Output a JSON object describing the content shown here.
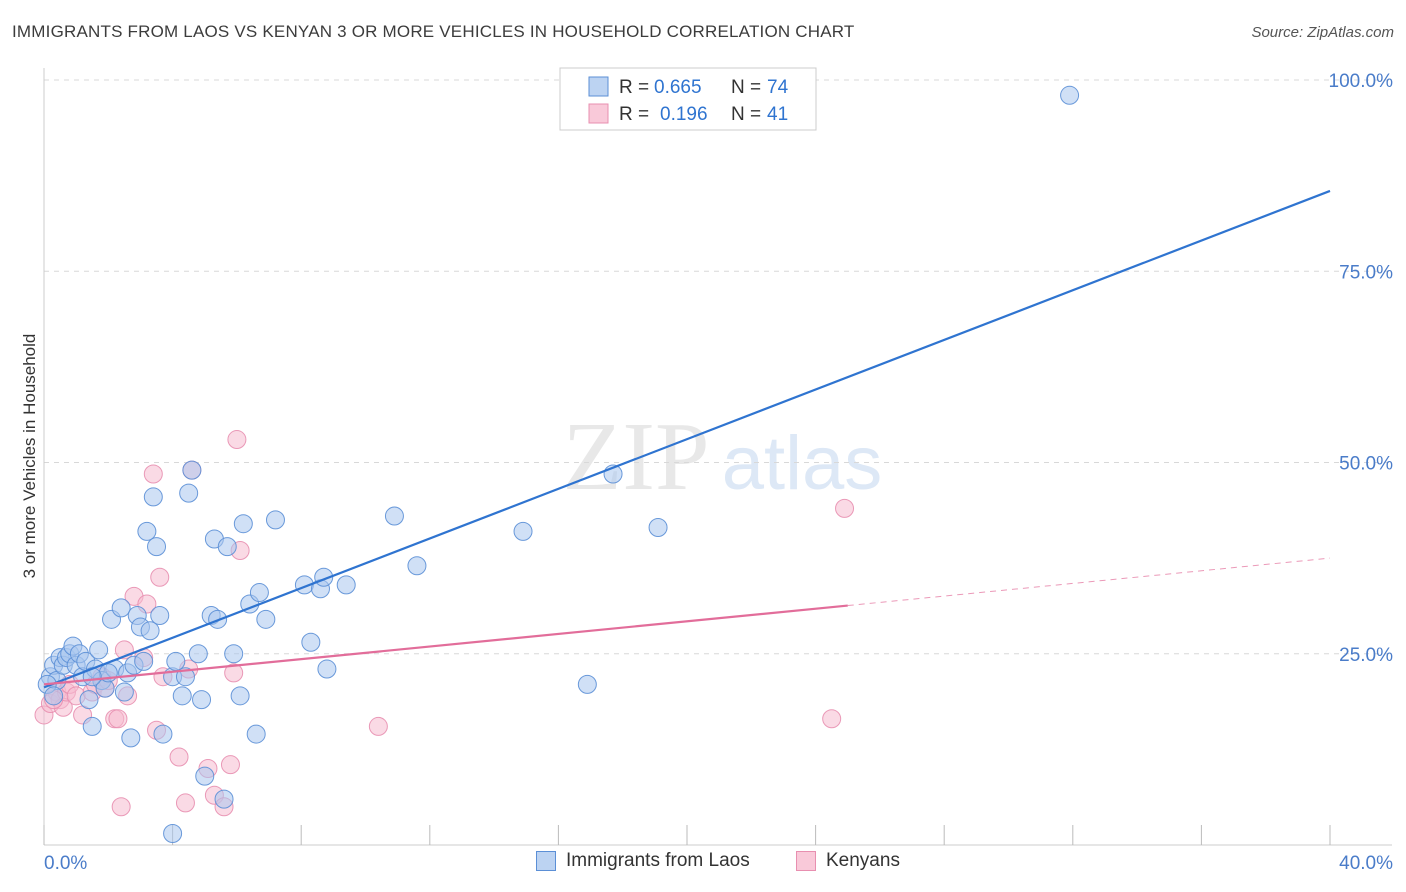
{
  "header": {
    "title": "IMMIGRANTS FROM LAOS VS KENYAN 3 OR MORE VEHICLES IN HOUSEHOLD CORRELATION CHART",
    "source": "Source: ZipAtlas.com"
  },
  "watermark": {
    "zip": "ZIP",
    "atlas": "atlas"
  },
  "colors": {
    "blue": "#2f74d0",
    "blue_fill": "#a9c6ee",
    "blue_stroke": "#5b8fd6",
    "pink": "#e26d9a",
    "pink_fill": "#f5bbd0",
    "pink_stroke": "#e88fb0",
    "tick_label": "#4a7cc9",
    "grid": "#d8d8d8"
  },
  "chart_data": {
    "type": "scatter",
    "title": "IMMIGRANTS FROM LAOS VS KENYAN 3 OR MORE VEHICLES IN HOUSEHOLD CORRELATION CHART",
    "xlabel": "",
    "ylabel": "3 or more Vehicles in Household",
    "xlim": [
      0,
      40
    ],
    "ylim": [
      0,
      100
    ],
    "x_tick_labels": [
      "0.0%",
      "40.0%"
    ],
    "y_tick_labels": [
      "25.0%",
      "50.0%",
      "75.0%",
      "100.0%"
    ],
    "y_ticks": [
      25,
      50,
      75,
      100
    ],
    "legend_stats": [
      {
        "r_label": "R =",
        "r_value": "0.665",
        "n_label": "N =",
        "n_value": "74"
      },
      {
        "r_label": "R =",
        "r_value": "0.196",
        "n_label": "N =",
        "n_value": "41"
      }
    ],
    "series": [
      {
        "name": "Immigrants from Laos",
        "color": "#2f74d0",
        "trend": {
          "x0": 0,
          "y0": 20.6,
          "x1": 40,
          "y1": 85.5
        },
        "points": [
          [
            0.2,
            22.0
          ],
          [
            0.3,
            23.5
          ],
          [
            0.4,
            21.5
          ],
          [
            0.5,
            24.5
          ],
          [
            0.6,
            23.5
          ],
          [
            0.7,
            24.5
          ],
          [
            0.8,
            25.0
          ],
          [
            0.9,
            26.0
          ],
          [
            1.0,
            23.5
          ],
          [
            1.1,
            25.0
          ],
          [
            1.2,
            22.0
          ],
          [
            1.3,
            24.0
          ],
          [
            1.4,
            19.0
          ],
          [
            1.5,
            15.5
          ],
          [
            1.6,
            23.0
          ],
          [
            1.7,
            25.5
          ],
          [
            1.8,
            21.5
          ],
          [
            1.9,
            20.5
          ],
          [
            2.1,
            29.5
          ],
          [
            2.2,
            23.0
          ],
          [
            2.4,
            31.0
          ],
          [
            2.5,
            20.0
          ],
          [
            2.6,
            22.5
          ],
          [
            2.7,
            14.0
          ],
          [
            2.8,
            23.5
          ],
          [
            2.9,
            30.0
          ],
          [
            3.0,
            28.5
          ],
          [
            3.1,
            24.0
          ],
          [
            3.2,
            41.0
          ],
          [
            3.3,
            28.0
          ],
          [
            3.4,
            45.5
          ],
          [
            3.5,
            39.0
          ],
          [
            3.6,
            30.0
          ],
          [
            3.7,
            14.5
          ],
          [
            4.0,
            22.0
          ],
          [
            4.1,
            24.0
          ],
          [
            4.3,
            19.5
          ],
          [
            4.4,
            22.0
          ],
          [
            4.5,
            46.0
          ],
          [
            4.6,
            49.0
          ],
          [
            4.8,
            25.0
          ],
          [
            4.9,
            19.0
          ],
          [
            5.0,
            9.0
          ],
          [
            5.2,
            30.0
          ],
          [
            5.3,
            40.0
          ],
          [
            5.4,
            29.5
          ],
          [
            5.6,
            6.0
          ],
          [
            5.7,
            39.0
          ],
          [
            5.9,
            25.0
          ],
          [
            6.1,
            19.5
          ],
          [
            6.2,
            42.0
          ],
          [
            6.4,
            31.5
          ],
          [
            6.6,
            14.5
          ],
          [
            6.7,
            33.0
          ],
          [
            6.9,
            29.5
          ],
          [
            7.2,
            42.5
          ],
          [
            8.1,
            34.0
          ],
          [
            8.3,
            26.5
          ],
          [
            8.6,
            33.5
          ],
          [
            8.7,
            35.0
          ],
          [
            8.8,
            23.0
          ],
          [
            9.4,
            34.0
          ],
          [
            10.9,
            43.0
          ],
          [
            11.6,
            36.5
          ],
          [
            14.9,
            41.0
          ],
          [
            16.9,
            21.0
          ],
          [
            17.7,
            48.5
          ],
          [
            19.1,
            41.5
          ],
          [
            31.9,
            98.0
          ],
          [
            0.1,
            21.0
          ],
          [
            0.3,
            19.5
          ],
          [
            2.0,
            22.5
          ],
          [
            1.5,
            22.0
          ],
          [
            4.0,
            1.5
          ]
        ]
      },
      {
        "name": "Kenyans",
        "color": "#e26d9a",
        "trend": {
          "x0": 0,
          "y0": 21.0,
          "x1": 25,
          "y1": 31.3,
          "dash_x1": 40,
          "dash_y1": 37.5
        },
        "points": [
          [
            0.0,
            17.0
          ],
          [
            0.2,
            18.5
          ],
          [
            0.4,
            20.0
          ],
          [
            0.5,
            19.0
          ],
          [
            0.6,
            18.0
          ],
          [
            0.7,
            20.0
          ],
          [
            0.8,
            21.0
          ],
          [
            1.0,
            19.5
          ],
          [
            1.2,
            17.0
          ],
          [
            1.5,
            20.0
          ],
          [
            1.6,
            21.0
          ],
          [
            1.8,
            22.0
          ],
          [
            1.9,
            20.5
          ],
          [
            2.0,
            21.5
          ],
          [
            2.2,
            16.5
          ],
          [
            2.3,
            16.5
          ],
          [
            2.5,
            25.5
          ],
          [
            2.6,
            19.5
          ],
          [
            2.8,
            32.5
          ],
          [
            3.1,
            24.5
          ],
          [
            3.2,
            31.5
          ],
          [
            3.4,
            48.5
          ],
          [
            3.5,
            15.0
          ],
          [
            3.6,
            35.0
          ],
          [
            3.7,
            22.0
          ],
          [
            4.2,
            11.5
          ],
          [
            4.4,
            5.5
          ],
          [
            4.5,
            23.0
          ],
          [
            4.6,
            49.0
          ],
          [
            5.1,
            10.0
          ],
          [
            5.3,
            6.5
          ],
          [
            5.6,
            5.0
          ],
          [
            5.8,
            10.5
          ],
          [
            5.9,
            22.5
          ],
          [
            6.0,
            53.0
          ],
          [
            6.1,
            38.5
          ],
          [
            2.4,
            5.0
          ],
          [
            10.4,
            15.5
          ],
          [
            24.5,
            16.5
          ],
          [
            24.9,
            44.0
          ],
          [
            0.3,
            19.0
          ]
        ]
      }
    ]
  }
}
